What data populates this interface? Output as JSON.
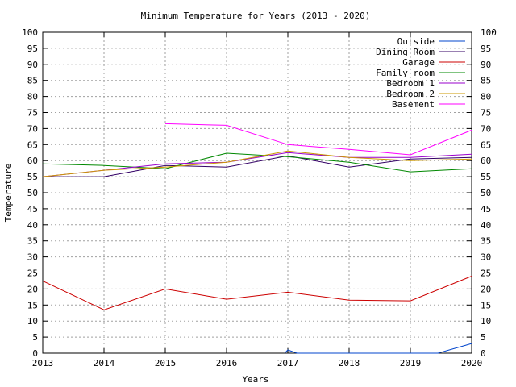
{
  "chart_data": {
    "type": "line",
    "title": "Minimum Temperature for Years (2013 - 2020)",
    "xlabel": "Years",
    "ylabel": "Temperature",
    "xlim": [
      2013,
      2020
    ],
    "ylim": [
      0,
      100
    ],
    "y_ticks": [
      "0",
      "5",
      "10",
      "15",
      "20",
      "25",
      "30",
      "35",
      "40",
      "45",
      "50",
      "55",
      "60",
      "65",
      "70",
      "75",
      "80",
      "85",
      "90",
      "95",
      "100"
    ],
    "x_ticks": [
      "2013",
      "2014",
      "2015",
      "2016",
      "2017",
      "2018",
      "2019",
      "2020"
    ],
    "grid": true,
    "legend_position": "top-right",
    "series": [
      {
        "name": "Outside",
        "color": "#0044cc",
        "points": [
          [
            2016.95,
            0
          ],
          [
            2017,
            1
          ],
          [
            2017.15,
            0
          ],
          [
            2019.45,
            0
          ],
          [
            2020,
            3
          ]
        ]
      },
      {
        "name": "Dining Room",
        "color": "#330066",
        "points": [
          [
            2013,
            55
          ],
          [
            2014,
            55
          ],
          [
            2015,
            58.5
          ],
          [
            2016,
            58
          ],
          [
            2017,
            61.5
          ],
          [
            2018,
            58
          ],
          [
            2019,
            60.5
          ],
          [
            2020,
            61
          ]
        ]
      },
      {
        "name": "Garage",
        "color": "#cc0000",
        "points": [
          [
            2013,
            22.5
          ],
          [
            2014,
            13.5
          ],
          [
            2015,
            20
          ],
          [
            2016,
            16.8
          ],
          [
            2017,
            19
          ],
          [
            2018,
            16.5
          ],
          [
            2019,
            16.3
          ],
          [
            2020,
            24
          ]
        ]
      },
      {
        "name": "Family room",
        "color": "#008800",
        "points": [
          [
            2013,
            59
          ],
          [
            2014,
            58.5
          ],
          [
            2015,
            57.5
          ],
          [
            2016,
            62.3
          ],
          [
            2017,
            61.2
          ],
          [
            2018,
            59.5
          ],
          [
            2019,
            56.5
          ],
          [
            2020,
            57.5
          ]
        ]
      },
      {
        "name": "Bedroom 1",
        "color": "#9900cc",
        "points": [
          [
            2013,
            55
          ],
          [
            2014,
            57
          ],
          [
            2015,
            59
          ],
          [
            2016,
            59.5
          ],
          [
            2017,
            62.5
          ],
          [
            2018,
            61
          ],
          [
            2019,
            61
          ],
          [
            2020,
            62
          ]
        ]
      },
      {
        "name": "Bedroom 2",
        "color": "#cc9900",
        "points": [
          [
            2013,
            55
          ],
          [
            2014,
            57
          ],
          [
            2015,
            58
          ],
          [
            2016,
            59.5
          ],
          [
            2017,
            63
          ],
          [
            2018,
            61
          ],
          [
            2019,
            60
          ],
          [
            2020,
            60.5
          ]
        ]
      },
      {
        "name": "Basement",
        "color": "#ff00ff",
        "points": [
          [
            2015,
            71.5
          ],
          [
            2016,
            71
          ],
          [
            2017,
            65
          ],
          [
            2018,
            63.5
          ],
          [
            2019,
            61.8
          ],
          [
            2020,
            69.5
          ]
        ]
      }
    ]
  }
}
